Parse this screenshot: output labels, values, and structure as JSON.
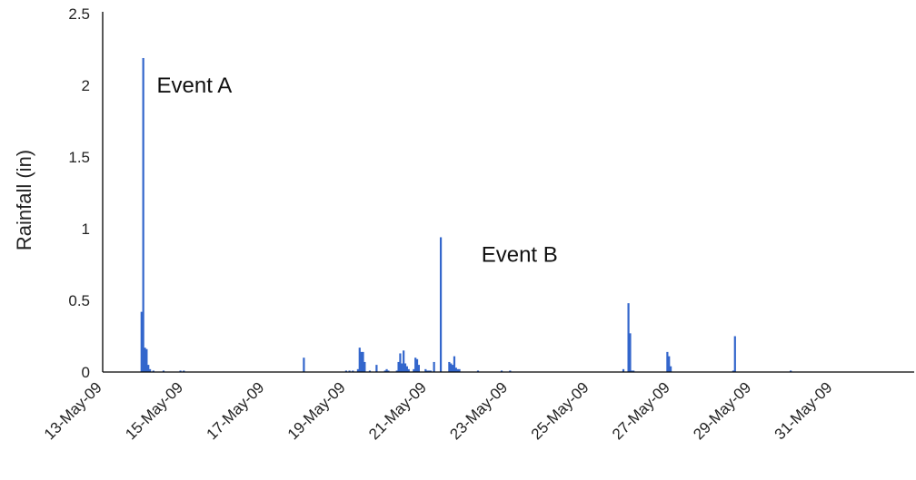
{
  "chart_data": {
    "type": "bar",
    "title": "",
    "xlabel": "",
    "ylabel": "Rainfall (in)",
    "ylim": [
      0,
      2.5
    ],
    "yticks": [
      0,
      0.5,
      1,
      1.5,
      2,
      2.5
    ],
    "ytick_labels": [
      "0",
      "0.5",
      "1",
      "1.5",
      "2",
      "2.5"
    ],
    "xlim": [
      "2009-05-13",
      "2009-06-02"
    ],
    "xtick_dates": [
      "2009-05-13",
      "2009-05-15",
      "2009-05-17",
      "2009-05-19",
      "2009-05-21",
      "2009-05-23",
      "2009-05-25",
      "2009-05-27",
      "2009-05-29",
      "2009-05-31"
    ],
    "xtick_labels": [
      "13-May-09",
      "15-May-09",
      "17-May-09",
      "19-May-09",
      "21-May-09",
      "23-May-09",
      "25-May-09",
      "27-May-09",
      "29-May-09",
      "31-May-09"
    ],
    "grid": false,
    "bar_color": "#3366cc",
    "series": [
      {
        "x": [
          "2009-05-13 23:00",
          "2009-05-14 00:00",
          "2009-05-14 01:00",
          "2009-05-14 02:00",
          "2009-05-14 03:00",
          "2009-05-14 04:00",
          "2009-05-14 06:00",
          "2009-05-14 12:00",
          "2009-05-14 22:00",
          "2009-05-15 00:00",
          "2009-05-17 23:00",
          "2009-05-19 00:00",
          "2009-05-19 02:00",
          "2009-05-19 04:00",
          "2009-05-19 07:00",
          "2009-05-19 08:00",
          "2009-05-19 09:00",
          "2009-05-19 10:00",
          "2009-05-19 11:00",
          "2009-05-19 14:00",
          "2009-05-19 18:00",
          "2009-05-19 23:00",
          "2009-05-20 00:00",
          "2009-05-20 01:00",
          "2009-05-20 06:00",
          "2009-05-20 07:00",
          "2009-05-20 08:00",
          "2009-05-20 09:00",
          "2009-05-20 10:00",
          "2009-05-20 11:00",
          "2009-05-20 12:00",
          "2009-05-20 13:00",
          "2009-05-20 16:00",
          "2009-05-20 17:00",
          "2009-05-20 18:00",
          "2009-05-20 19:00",
          "2009-05-20 23:00",
          "2009-05-21 00:00",
          "2009-05-21 01:00",
          "2009-05-21 02:00",
          "2009-05-21 04:00",
          "2009-05-21 08:00",
          "2009-05-21 13:00",
          "2009-05-21 14:00",
          "2009-05-21 15:00",
          "2009-05-21 16:00",
          "2009-05-21 17:00",
          "2009-05-21 18:00",
          "2009-05-21 19:00",
          "2009-05-22 06:00",
          "2009-05-22 20:00",
          "2009-05-23 01:00",
          "2009-05-25 20:00",
          "2009-05-25 23:00",
          "2009-05-26 00:00",
          "2009-05-26 01:00",
          "2009-05-26 02:00",
          "2009-05-26 22:00",
          "2009-05-26 23:00",
          "2009-05-27 00:00",
          "2009-05-28 13:00",
          "2009-05-28 14:00",
          "2009-05-29 23:00"
        ],
        "values": [
          0.42,
          2.19,
          0.17,
          0.16,
          0.05,
          0.02,
          0.01,
          0.01,
          0.01,
          0.01,
          0.1,
          0.01,
          0.01,
          0.01,
          0.02,
          0.17,
          0.14,
          0.14,
          0.07,
          0.01,
          0.05,
          0.01,
          0.02,
          0.01,
          0.01,
          0.07,
          0.13,
          0.06,
          0.15,
          0.06,
          0.04,
          0.02,
          0.02,
          0.1,
          0.09,
          0.05,
          0.02,
          0.01,
          0.01,
          0.01,
          0.07,
          0.94,
          0.07,
          0.06,
          0.05,
          0.11,
          0.03,
          0.02,
          0.02,
          0.01,
          0.01,
          0.01,
          0.02,
          0.48,
          0.27,
          0.01,
          0.01,
          0.14,
          0.11,
          0.04,
          0.01,
          0.25,
          0.01
        ]
      }
    ],
    "annotations": [
      {
        "text": "Event A",
        "x": "2009-05-14 08:00",
        "y": 1.95
      },
      {
        "text": "Event B",
        "x": "2009-05-22 08:00",
        "y": 0.77
      }
    ]
  }
}
